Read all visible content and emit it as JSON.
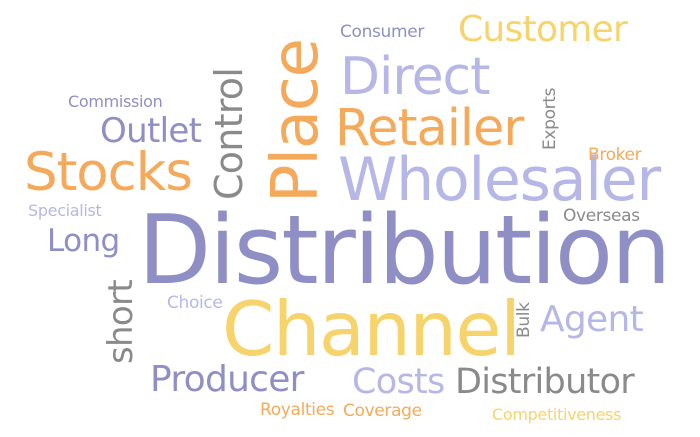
{
  "palette": {
    "purple": "#8f8fc6",
    "lavender": "#b6b7e6",
    "orange": "#f5a95a",
    "yellow": "#f7d36b",
    "gray": "#8a8a8a"
  },
  "words": {
    "distribution": "Distribution",
    "channel": "Channel",
    "place": "Place",
    "wholesaler": "Wholesaler",
    "retailer": "Retailer",
    "direct": "Direct",
    "stocks": "Stocks",
    "customer": "Customer",
    "control": "Control",
    "producer": "Producer",
    "distributor": "Distributor",
    "costs": "Costs",
    "agent": "Agent",
    "outlet": "Outlet",
    "long": "Long",
    "short": "short",
    "consumer": "Consumer",
    "commission": "Commission",
    "specialist": "Specialist",
    "exports": "Exports",
    "broker": "Broker",
    "overseas": "Overseas",
    "bulk": "Bulk",
    "choice": "Choice",
    "royalties": "Royalties",
    "coverage": "Coverage",
    "competitiveness": "Competitiveness"
  }
}
